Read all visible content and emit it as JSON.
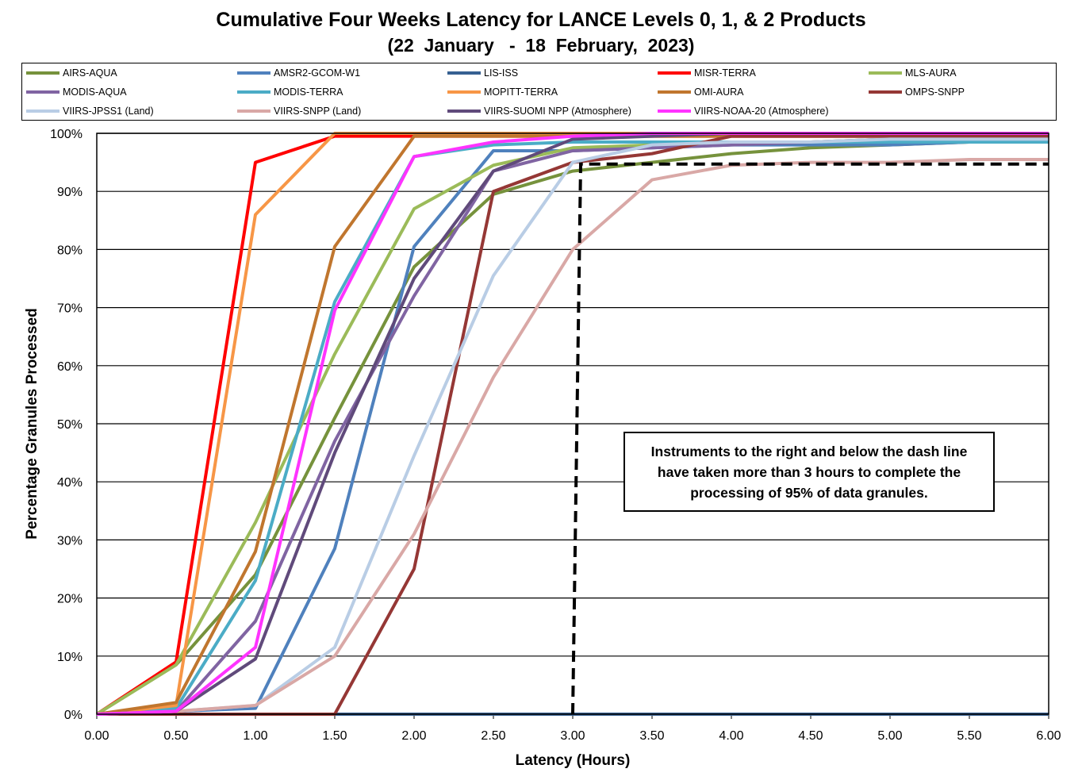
{
  "chart_data": {
    "type": "line",
    "title": "Cumulative Four Weeks Latency  for LANCE Levels 0, 1, & 2 Products",
    "subtitle": "(22  January   -  18  February,  2023)",
    "xlabel": "Latency (Hours)",
    "ylabel": "Percentage Granules Processed",
    "xlim": [
      0,
      6
    ],
    "ylim": [
      0,
      100
    ],
    "x_ticks": [
      "0.00",
      "0.50",
      "1.00",
      "1.50",
      "2.00",
      "2.50",
      "3.00",
      "3.50",
      "4.00",
      "4.50",
      "5.00",
      "5.50",
      "6.00"
    ],
    "y_ticks": [
      "0%",
      "10%",
      "20%",
      "30%",
      "40%",
      "50%",
      "60%",
      "70%",
      "80%",
      "90%",
      "100%"
    ],
    "grid": "horizontal",
    "legend_position": "top",
    "x": [
      0,
      0.5,
      1,
      1.5,
      2,
      2.5,
      3,
      3.5,
      4,
      4.5,
      5,
      5.5,
      6
    ],
    "series": [
      {
        "name": "AIRS-AQUA",
        "color": "#76923C",
        "values": [
          0,
          8.5,
          24,
          51,
          77,
          89.5,
          93.5,
          95,
          96.5,
          97.5,
          98,
          98.5,
          98.5
        ]
      },
      {
        "name": "AMSR2-GCOM-W1",
        "color": "#4F81BD",
        "values": [
          0,
          0.5,
          1,
          28.5,
          80.5,
          97,
          97,
          97.5,
          98,
          98,
          98,
          98.5,
          98.5
        ]
      },
      {
        "name": "LIS-ISS",
        "color": "#366092",
        "values": [
          0,
          0,
          0,
          0,
          0,
          0,
          0,
          0,
          0,
          0,
          0,
          0,
          0
        ]
      },
      {
        "name": "MISR-TERRA",
        "color": "#FF0000",
        "values": [
          0,
          9,
          95,
          99.5,
          99.5,
          99.5,
          99.5,
          99.5,
          99.5,
          99.5,
          99.5,
          99.5,
          99.5
        ]
      },
      {
        "name": "MLS-AURA",
        "color": "#9BBB59",
        "values": [
          0,
          8.5,
          33,
          62,
          87,
          94.5,
          97.5,
          98,
          98.5,
          98.5,
          99,
          99,
          99
        ]
      },
      {
        "name": "MODIS-AQUA",
        "color": "#8064A2",
        "values": [
          0,
          0.5,
          16,
          47,
          72,
          93.5,
          97,
          97.5,
          98,
          98.5,
          99,
          99,
          99
        ]
      },
      {
        "name": "MODIS-TERRA",
        "color": "#4BACC6",
        "values": [
          0,
          1,
          23,
          71,
          96,
          98,
          98.5,
          98.5,
          98.5,
          98.5,
          98.5,
          98.5,
          98.5
        ]
      },
      {
        "name": "MOPITT-TERRA",
        "color": "#F79646",
        "values": [
          0,
          1.5,
          86,
          100,
          100,
          100,
          100,
          100,
          100,
          100,
          100,
          100,
          100
        ]
      },
      {
        "name": "OMI-AURA",
        "color": "#C0762E",
        "values": [
          0,
          2,
          28,
          80.5,
          99.5,
          99.5,
          99.5,
          99.5,
          99.5,
          99.5,
          99.5,
          99.5,
          99.5
        ]
      },
      {
        "name": "OMPS-SNPP",
        "color": "#953735",
        "values": [
          0,
          0,
          0,
          0,
          25,
          90,
          95,
          96.5,
          99.5,
          99.5,
          99.5,
          99.5,
          99.5
        ]
      },
      {
        "name": "VIIRS-JPSS1 (Land)",
        "color": "#B9CDE5",
        "values": [
          0,
          0.5,
          1.5,
          11.5,
          44.5,
          75.5,
          95,
          98,
          98.5,
          98.5,
          99,
          99,
          99
        ]
      },
      {
        "name": "VIIRS-SNPP (Land)",
        "color": "#D9A8A6",
        "values": [
          0,
          0.5,
          1.5,
          10,
          31,
          58,
          80,
          92,
          94.5,
          95,
          95,
          95.5,
          95.5
        ]
      },
      {
        "name": "VIIRS-SUOMI NPP (Atmosphere)",
        "color": "#604A7B",
        "values": [
          0,
          0.5,
          9.5,
          45,
          75,
          93.5,
          99,
          99.5,
          100,
          100,
          100,
          100,
          100
        ]
      },
      {
        "name": "VIIRS-NOAA-20 (Atmosphere)",
        "color": "#FF33FF",
        "values": [
          0,
          0.5,
          11.5,
          69.5,
          96,
          98.5,
          99.5,
          100,
          100,
          100,
          100,
          100,
          100
        ]
      }
    ],
    "threshold_line": {
      "x": 3.05,
      "y": 94.7,
      "style": "dashed",
      "color": "#000000"
    },
    "annotation": "Instruments to the right and below the dash line have taken more than 3 hours to complete the processing of 95% of data granules."
  }
}
